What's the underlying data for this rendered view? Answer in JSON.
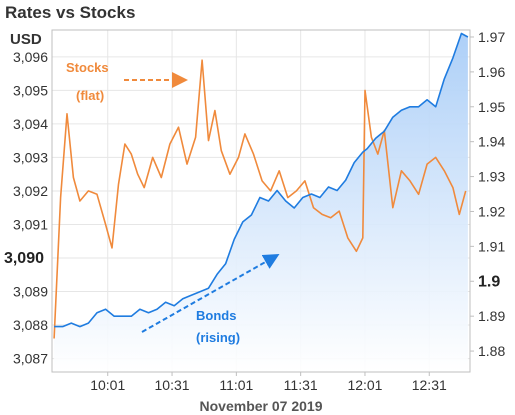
{
  "chart_data": {
    "type": "line",
    "title": "Rates vs Stocks",
    "unit_label": "USD",
    "xlabel": "November 07 2019",
    "x_ticks": [
      "10:01",
      "10:31",
      "11:01",
      "11:31",
      "12:01",
      "12:31"
    ],
    "x_range": [
      "09:35",
      "12:50"
    ],
    "left_axis": {
      "ticks": [
        "3,096",
        "3,095",
        "3,094",
        "3,093",
        "3,092",
        "3,091",
        "3,090",
        "3,089",
        "3,088",
        "3,087"
      ],
      "highlight": "3,090",
      "range": [
        3086.6,
        3096.8
      ]
    },
    "right_axis": {
      "ticks": [
        "1.97",
        "1.96",
        "1.95",
        "1.94",
        "1.93",
        "1.92",
        "1.91",
        "1.9",
        "1.89",
        "1.88"
      ],
      "highlight": "1.9",
      "range": [
        1.874,
        1.972
      ]
    },
    "grid": true,
    "series": [
      {
        "name": "Stocks",
        "axis": "left",
        "color": "#F08A3C",
        "x": [
          "09:36",
          "09:39",
          "09:42",
          "09:45",
          "09:48",
          "09:52",
          "09:56",
          "10:00",
          "10:03",
          "10:06",
          "10:09",
          "10:12",
          "10:15",
          "10:18",
          "10:22",
          "10:26",
          "10:30",
          "10:34",
          "10:38",
          "10:42",
          "10:45",
          "10:48",
          "10:51",
          "10:54",
          "10:58",
          "11:02",
          "11:05",
          "11:09",
          "11:13",
          "11:17",
          "11:21",
          "11:25",
          "11:29",
          "11:33",
          "11:37",
          "11:41",
          "11:45",
          "11:49",
          "11:53",
          "11:57",
          "12:00",
          "12:01",
          "12:04",
          "12:07",
          "12:10",
          "12:14",
          "12:18",
          "12:22",
          "12:26",
          "12:30",
          "12:34",
          "12:38",
          "12:42",
          "12:45",
          "12:48"
        ],
        "values": [
          3087.6,
          3091.8,
          3094.3,
          3092.4,
          3091.7,
          3092.0,
          3091.9,
          3091.0,
          3090.3,
          3092.2,
          3093.4,
          3093.1,
          3092.5,
          3092.1,
          3093.0,
          3092.4,
          3093.4,
          3093.9,
          3092.8,
          3093.6,
          3095.9,
          3093.5,
          3094.4,
          3093.2,
          3092.5,
          3093.0,
          3093.7,
          3093.1,
          3092.3,
          3092.0,
          3092.6,
          3091.8,
          3092.0,
          3092.3,
          3091.5,
          3091.3,
          3091.2,
          3091.4,
          3090.6,
          3090.2,
          3090.6,
          3095.0,
          3093.6,
          3093.1,
          3093.8,
          3091.5,
          3092.6,
          3092.3,
          3091.9,
          3092.8,
          3093.0,
          3092.6,
          3092.1,
          3091.3,
          3092.0
        ]
      },
      {
        "name": "Bonds",
        "axis": "right",
        "color": "#1F7CE0",
        "fill_color": "#CFE3FB",
        "x": [
          "09:36",
          "09:40",
          "09:44",
          "09:48",
          "09:52",
          "09:56",
          "10:00",
          "10:04",
          "10:08",
          "10:12",
          "10:16",
          "10:20",
          "10:24",
          "10:28",
          "10:32",
          "10:36",
          "10:40",
          "10:44",
          "10:48",
          "10:52",
          "10:56",
          "11:00",
          "11:04",
          "11:08",
          "11:12",
          "11:16",
          "11:20",
          "11:24",
          "11:28",
          "11:32",
          "11:36",
          "11:40",
          "11:44",
          "11:48",
          "11:52",
          "11:56",
          "12:00",
          "12:02",
          "12:06",
          "12:10",
          "12:14",
          "12:18",
          "12:22",
          "12:26",
          "12:30",
          "12:34",
          "12:38",
          "12:42",
          "12:46",
          "12:49"
        ],
        "values": [
          1.887,
          1.887,
          1.888,
          1.887,
          1.888,
          1.891,
          1.892,
          1.89,
          1.89,
          1.89,
          1.892,
          1.891,
          1.892,
          1.894,
          1.893,
          1.895,
          1.896,
          1.897,
          1.898,
          1.902,
          1.905,
          1.912,
          1.917,
          1.919,
          1.924,
          1.923,
          1.926,
          1.923,
          1.921,
          1.924,
          1.925,
          1.924,
          1.927,
          1.926,
          1.929,
          1.934,
          1.937,
          1.938,
          1.941,
          1.943,
          1.947,
          1.949,
          1.95,
          1.95,
          1.952,
          1.95,
          1.958,
          1.964,
          1.971,
          1.97
        ]
      }
    ],
    "annotations": [
      {
        "text": "Stocks",
        "color": "#F08A3C"
      },
      {
        "text": "(flat)",
        "color": "#F08A3C"
      },
      {
        "text": "Bonds",
        "color": "#1F7CE0"
      },
      {
        "text": "(rising)",
        "color": "#1F7CE0"
      }
    ]
  }
}
